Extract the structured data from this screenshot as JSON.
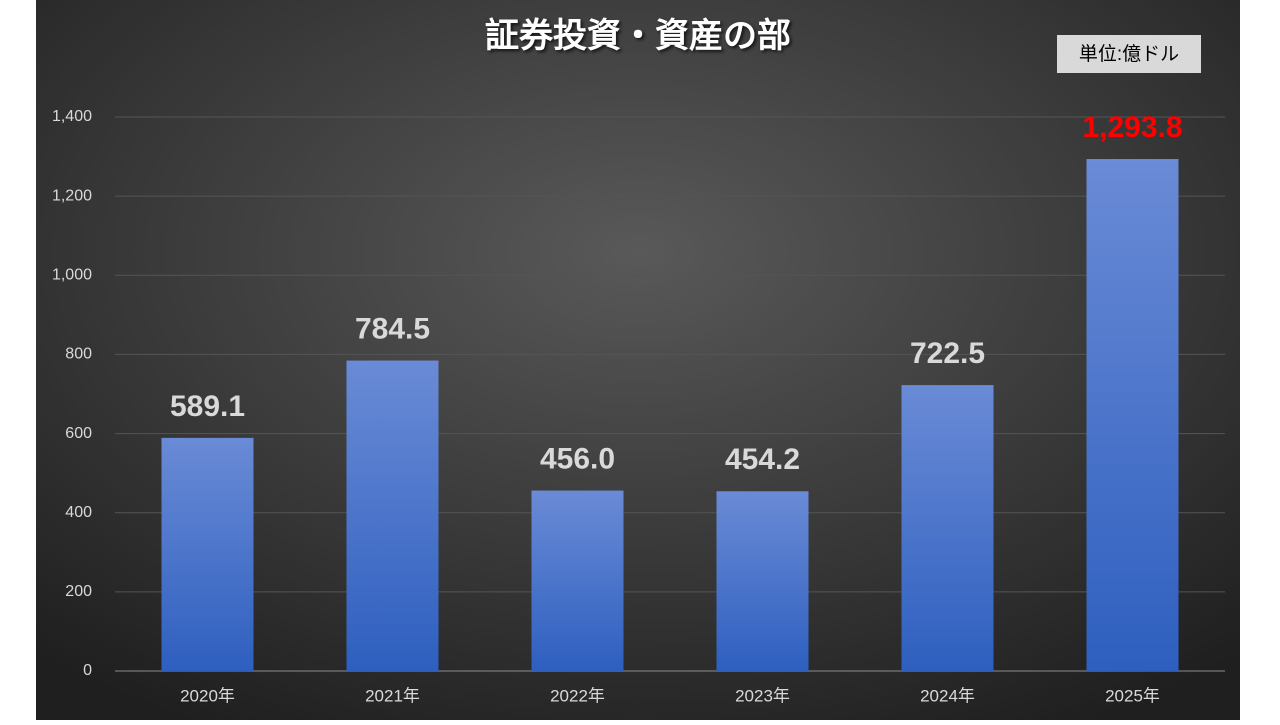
{
  "chart_data": {
    "type": "bar",
    "title": "証券投資・資産の部",
    "annotation": "単位:億ドル",
    "categories": [
      "2020年",
      "2021年",
      "2022年",
      "2023年",
      "2024年",
      "2025年"
    ],
    "values": [
      589.1,
      784.5,
      456.0,
      454.2,
      722.5,
      1293.8
    ],
    "value_labels": [
      "589.1",
      "784.5",
      "456.0",
      "454.2",
      "722.5",
      "1,293.8"
    ],
    "value_label_colors": [
      "#d9d9d9",
      "#d9d9d9",
      "#d9d9d9",
      "#d9d9d9",
      "#d9d9d9",
      "#ff0000"
    ],
    "color": "#4472c4",
    "ylim": [
      0,
      1400
    ],
    "yticks": [
      0,
      200,
      400,
      600,
      800,
      {
        "value": 1000,
        "label": "1,000"
      },
      {
        "value": 1200,
        "label": "1,200"
      },
      {
        "value": 1400,
        "label": "1,400"
      }
    ],
    "grid": true
  }
}
